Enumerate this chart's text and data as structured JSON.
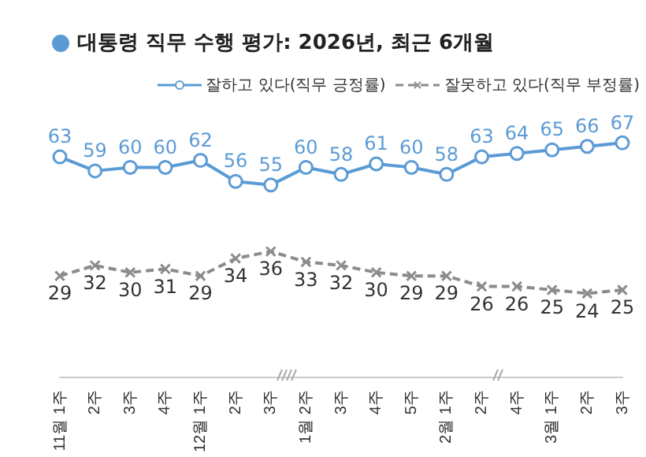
{
  "chart_data": {
    "type": "line",
    "title": "대통령 직무 수행 평가: 2026년, 최근 6개월",
    "categories": [
      "11월 1주",
      "2주",
      "3주",
      "4주",
      "12월 1주",
      "2주",
      "3주",
      "1월 2주",
      "3주",
      "4주",
      "5주",
      "2월 1주",
      "2주",
      "4주",
      "3월 1주",
      "2주",
      "3주"
    ],
    "series": [
      {
        "name": "잘하고 있다(직무 긍정률)",
        "color": "#5b9bd5",
        "marker": "circle",
        "line_style": "solid",
        "values": [
          63,
          59,
          60,
          60,
          62,
          56,
          55,
          60,
          58,
          61,
          60,
          58,
          63,
          64,
          65,
          66,
          67
        ]
      },
      {
        "name": "잘못하고 있다(직무 부정률)",
        "color": "#8c8c8c",
        "marker": "cross",
        "line_style": "dashed",
        "values": [
          29,
          32,
          30,
          31,
          29,
          34,
          36,
          33,
          32,
          30,
          29,
          29,
          26,
          26,
          25,
          24,
          25
        ]
      }
    ],
    "data_labels": true,
    "legend": "top right",
    "grid": false
  }
}
